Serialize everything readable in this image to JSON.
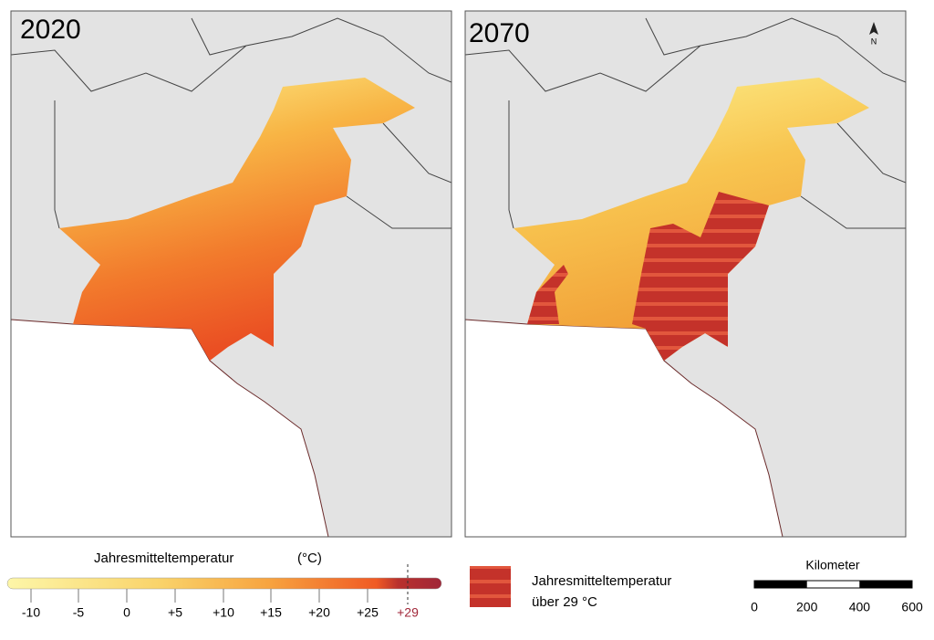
{
  "panels": [
    {
      "title": "2020"
    },
    {
      "title": "2070"
    }
  ],
  "north_arrow": "N",
  "legend": {
    "title": "Jahresmitteltemperatur",
    "unit": "(°C)",
    "ticks": [
      "-10",
      "-5",
      "0",
      "+5",
      "+10",
      "+15",
      "+20",
      "+25",
      "+29"
    ],
    "hatch_label": [
      "Jahresmitteltemperatur",
      "über 29 °C"
    ]
  },
  "scale_bar": {
    "title": "Kilometer",
    "ticks": [
      "0",
      "200",
      "400",
      "600"
    ]
  }
}
